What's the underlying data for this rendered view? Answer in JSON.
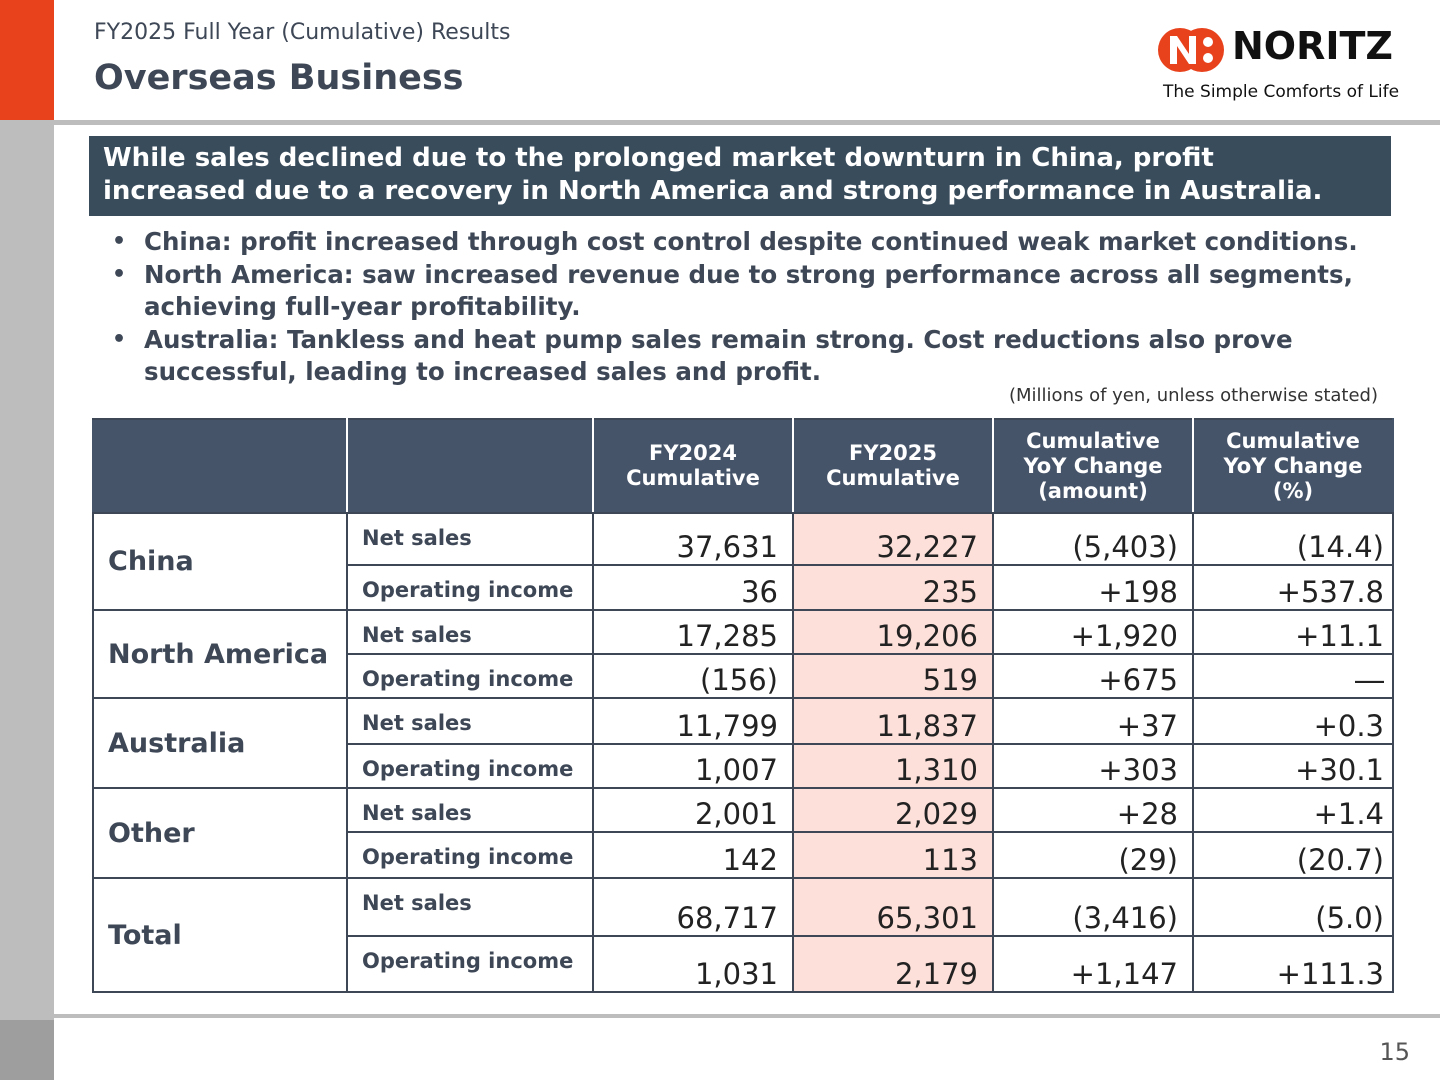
{
  "header": {
    "subtitle": "FY2025 Full Year (Cumulative) Results",
    "title": "Overseas Business"
  },
  "brand": {
    "name": "NORITZ",
    "tagline": "The Simple Comforts of Life",
    "color": "#e8421c"
  },
  "headline": {
    "line1": "While sales declined due to the prolonged market downturn in China, profit",
    "line2": "increased due to a recovery in North America and strong performance in Australia."
  },
  "bullets": [
    {
      "lines": [
        "China: profit increased through cost control despite continued weak market conditions."
      ]
    },
    {
      "lines": [
        "North America: saw increased revenue due to strong performance across all segments,",
        "achieving full-year profitability."
      ]
    },
    {
      "lines": [
        "Australia: Tankless and heat pump sales remain strong. Cost reductions also prove",
        "successful, leading to increased sales and profit."
      ]
    }
  ],
  "unit_note": "(Millions of yen, unless otherwise stated)",
  "table": {
    "headers": [
      "",
      "",
      "FY2024 Cumulative",
      "FY2025 Cumulative",
      "Cumulative YoY Change (amount)",
      "Cumulative YoY Change (%)"
    ],
    "header_lines": [
      [],
      [],
      [
        "FY2024",
        "Cumulative"
      ],
      [
        "FY2025",
        "Cumulative"
      ],
      [
        "Cumulative",
        "YoY Change",
        "(amount)"
      ],
      [
        "Cumulative",
        "YoY Change",
        "(%)"
      ]
    ],
    "groups": [
      {
        "region": "China",
        "rows": [
          {
            "metric": "Net sales",
            "fy2024": "37,631",
            "fy2025": "32,227",
            "amount": "(5,403)",
            "pct": "(14.4)"
          },
          {
            "metric": "Operating income",
            "fy2024": "36",
            "fy2025": "235",
            "amount": "+198",
            "pct": "+537.8"
          }
        ]
      },
      {
        "region": "North America",
        "rows": [
          {
            "metric": "Net sales",
            "fy2024": "17,285",
            "fy2025": "19,206",
            "amount": "+1,920",
            "pct": "+11.1"
          },
          {
            "metric": "Operating income",
            "fy2024": "(156)",
            "fy2025": "519",
            "amount": "+675",
            "pct": "―"
          }
        ]
      },
      {
        "region": "Australia",
        "rows": [
          {
            "metric": "Net sales",
            "fy2024": "11,799",
            "fy2025": "11,837",
            "amount": "+37",
            "pct": "+0.3"
          },
          {
            "metric": "Operating income",
            "fy2024": "1,007",
            "fy2025": "1,310",
            "amount": "+303",
            "pct": "+30.1"
          }
        ]
      },
      {
        "region": "Other",
        "rows": [
          {
            "metric": "Net sales",
            "fy2024": "2,001",
            "fy2025": "2,029",
            "amount": "+28",
            "pct": "+1.4"
          },
          {
            "metric": "Operating income",
            "fy2024": "142",
            "fy2025": "113",
            "amount": "(29)",
            "pct": "(20.7)"
          }
        ]
      },
      {
        "region": "Total",
        "rows": [
          {
            "metric": "Net sales",
            "fy2024": "68,717",
            "fy2025": "65,301",
            "amount": "(3,416)",
            "pct": "(5.0)"
          },
          {
            "metric": "Operating income",
            "fy2024": "1,031",
            "fy2025": "2,179",
            "amount": "+1,147",
            "pct": "+111.3"
          }
        ]
      }
    ]
  },
  "page_number": "15"
}
